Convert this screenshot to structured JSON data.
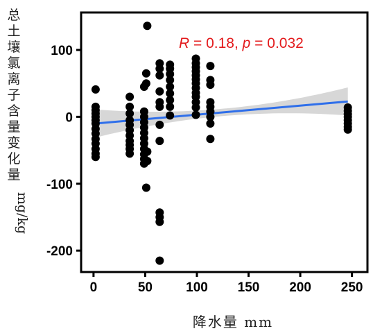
{
  "chart_data": {
    "type": "scatter",
    "xlabel": "降水量 mm",
    "ylabel_cjk": "总土壤氯离子含量变化量",
    "ylabel_unit": "mg/kg",
    "xlim": [
      -12,
      265
    ],
    "ylim": [
      -232,
      156
    ],
    "xticks": [
      0,
      50,
      100,
      150,
      200,
      250
    ],
    "yticks": [
      -200,
      -100,
      0,
      100
    ],
    "annotation": {
      "r_symbol": "R",
      "r_text": " = 0.18, ",
      "p_symbol": "p",
      "p_text": " = 0.032",
      "color": "#e31a1c"
    },
    "points": [
      {
        "x": 2,
        "y": 41
      },
      {
        "x": 2,
        "y": 15
      },
      {
        "x": 2,
        "y": 10
      },
      {
        "x": 2,
        "y": 5
      },
      {
        "x": 2,
        "y": 0
      },
      {
        "x": 2,
        "y": -5
      },
      {
        "x": 2,
        "y": -10
      },
      {
        "x": 2,
        "y": -18
      },
      {
        "x": 2,
        "y": -25
      },
      {
        "x": 2,
        "y": -33
      },
      {
        "x": 2,
        "y": -40
      },
      {
        "x": 2,
        "y": -48
      },
      {
        "x": 2,
        "y": -55
      },
      {
        "x": 2,
        "y": -60
      },
      {
        "x": 35,
        "y": 30
      },
      {
        "x": 35,
        "y": 15
      },
      {
        "x": 35,
        "y": 5
      },
      {
        "x": 35,
        "y": -5
      },
      {
        "x": 35,
        "y": -12
      },
      {
        "x": 35,
        "y": -20
      },
      {
        "x": 35,
        "y": -28
      },
      {
        "x": 35,
        "y": -36
      },
      {
        "x": 35,
        "y": -42
      },
      {
        "x": 35,
        "y": -48
      },
      {
        "x": 35,
        "y": -55
      },
      {
        "x": 49,
        "y": 8
      },
      {
        "x": 49,
        "y": 0
      },
      {
        "x": 49,
        "y": -8
      },
      {
        "x": 49,
        "y": -16
      },
      {
        "x": 49,
        "y": -24
      },
      {
        "x": 49,
        "y": -32
      },
      {
        "x": 49,
        "y": -40
      },
      {
        "x": 49,
        "y": -48
      },
      {
        "x": 49,
        "y": -56
      },
      {
        "x": 49,
        "y": -63
      },
      {
        "x": 49,
        "y": -70
      },
      {
        "x": 49,
        "y": 45
      },
      {
        "x": 52,
        "y": 136
      },
      {
        "x": 51,
        "y": 65
      },
      {
        "x": 51,
        "y": 50
      },
      {
        "x": 51,
        "y": -106
      },
      {
        "x": 52,
        "y": -52
      },
      {
        "x": 52,
        "y": -66
      },
      {
        "x": 64,
        "y": 80
      },
      {
        "x": 64,
        "y": 72
      },
      {
        "x": 64,
        "y": 62
      },
      {
        "x": 64,
        "y": 38
      },
      {
        "x": 64,
        "y": 22
      },
      {
        "x": 64,
        "y": 15
      },
      {
        "x": 64,
        "y": -12
      },
      {
        "x": 64,
        "y": -36
      },
      {
        "x": 64,
        "y": -143
      },
      {
        "x": 64,
        "y": -150
      },
      {
        "x": 64,
        "y": -157
      },
      {
        "x": 64,
        "y": -215
      },
      {
        "x": 74,
        "y": 78
      },
      {
        "x": 74,
        "y": 72
      },
      {
        "x": 74,
        "y": 64
      },
      {
        "x": 74,
        "y": 55
      },
      {
        "x": 74,
        "y": 45
      },
      {
        "x": 74,
        "y": 35
      },
      {
        "x": 74,
        "y": 25
      },
      {
        "x": 74,
        "y": 15
      },
      {
        "x": 74,
        "y": 2
      },
      {
        "x": 99,
        "y": 87
      },
      {
        "x": 99,
        "y": 80
      },
      {
        "x": 99,
        "y": 74
      },
      {
        "x": 99,
        "y": 68
      },
      {
        "x": 99,
        "y": 62
      },
      {
        "x": 99,
        "y": 56
      },
      {
        "x": 99,
        "y": 50
      },
      {
        "x": 99,
        "y": 43
      },
      {
        "x": 99,
        "y": 36
      },
      {
        "x": 99,
        "y": 30
      },
      {
        "x": 99,
        "y": 22
      },
      {
        "x": 99,
        "y": 14
      },
      {
        "x": 99,
        "y": 3
      },
      {
        "x": 113,
        "y": 76
      },
      {
        "x": 113,
        "y": 55
      },
      {
        "x": 113,
        "y": 48
      },
      {
        "x": 113,
        "y": 22
      },
      {
        "x": 113,
        "y": 15
      },
      {
        "x": 113,
        "y": 8
      },
      {
        "x": 113,
        "y": 0
      },
      {
        "x": 113,
        "y": -10
      },
      {
        "x": 113,
        "y": -33
      },
      {
        "x": 246,
        "y": 14
      },
      {
        "x": 246,
        "y": 9
      },
      {
        "x": 246,
        "y": 4
      },
      {
        "x": 246,
        "y": 0
      },
      {
        "x": 246,
        "y": -5
      },
      {
        "x": 246,
        "y": -10
      },
      {
        "x": 246,
        "y": -15
      },
      {
        "x": 246,
        "y": -19
      }
    ],
    "regression": {
      "x_range": [
        2,
        246
      ],
      "y_at_start": -10,
      "y_at_end": 23,
      "ci_low_end": 3,
      "ci_high_end": 45,
      "line_color": "#2f6fea",
      "band_color": "#d3d3d3"
    }
  }
}
